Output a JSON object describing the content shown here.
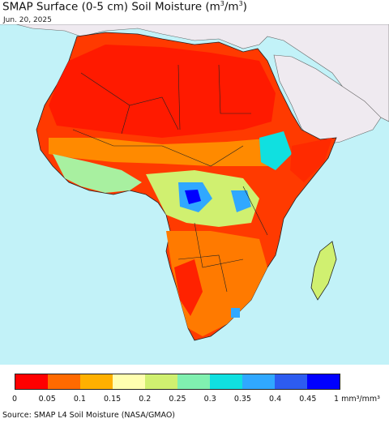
{
  "header": {
    "title_main": "SMAP Surface (0-5 cm) Soil Moisture (m",
    "title_mid": ")",
    "title_end": ")",
    "title_slash": "/m",
    "superscript": "3",
    "date": "Jun. 20, 2025"
  },
  "map": {
    "ocean_color": "#c2f2f8",
    "land_outside_color": "#efeaf0"
  },
  "legend": {
    "colors": [
      "#ff0000",
      "#ff6a00",
      "#ffb000",
      "#ffffb0",
      "#d0f070",
      "#80f0b0",
      "#10e0e0",
      "#30a8ff",
      "#2d5cf0",
      "#0000ff"
    ],
    "ticks": [
      "0",
      "0.05",
      "0.1",
      "0.15",
      "0.2",
      "0.25",
      "0.3",
      "0.35",
      "0.4",
      "0.45",
      "1 mm³/mm³"
    ]
  },
  "footer": {
    "source": "Source: SMAP L4 Soil Moisture (NASA/GMAO)"
  }
}
